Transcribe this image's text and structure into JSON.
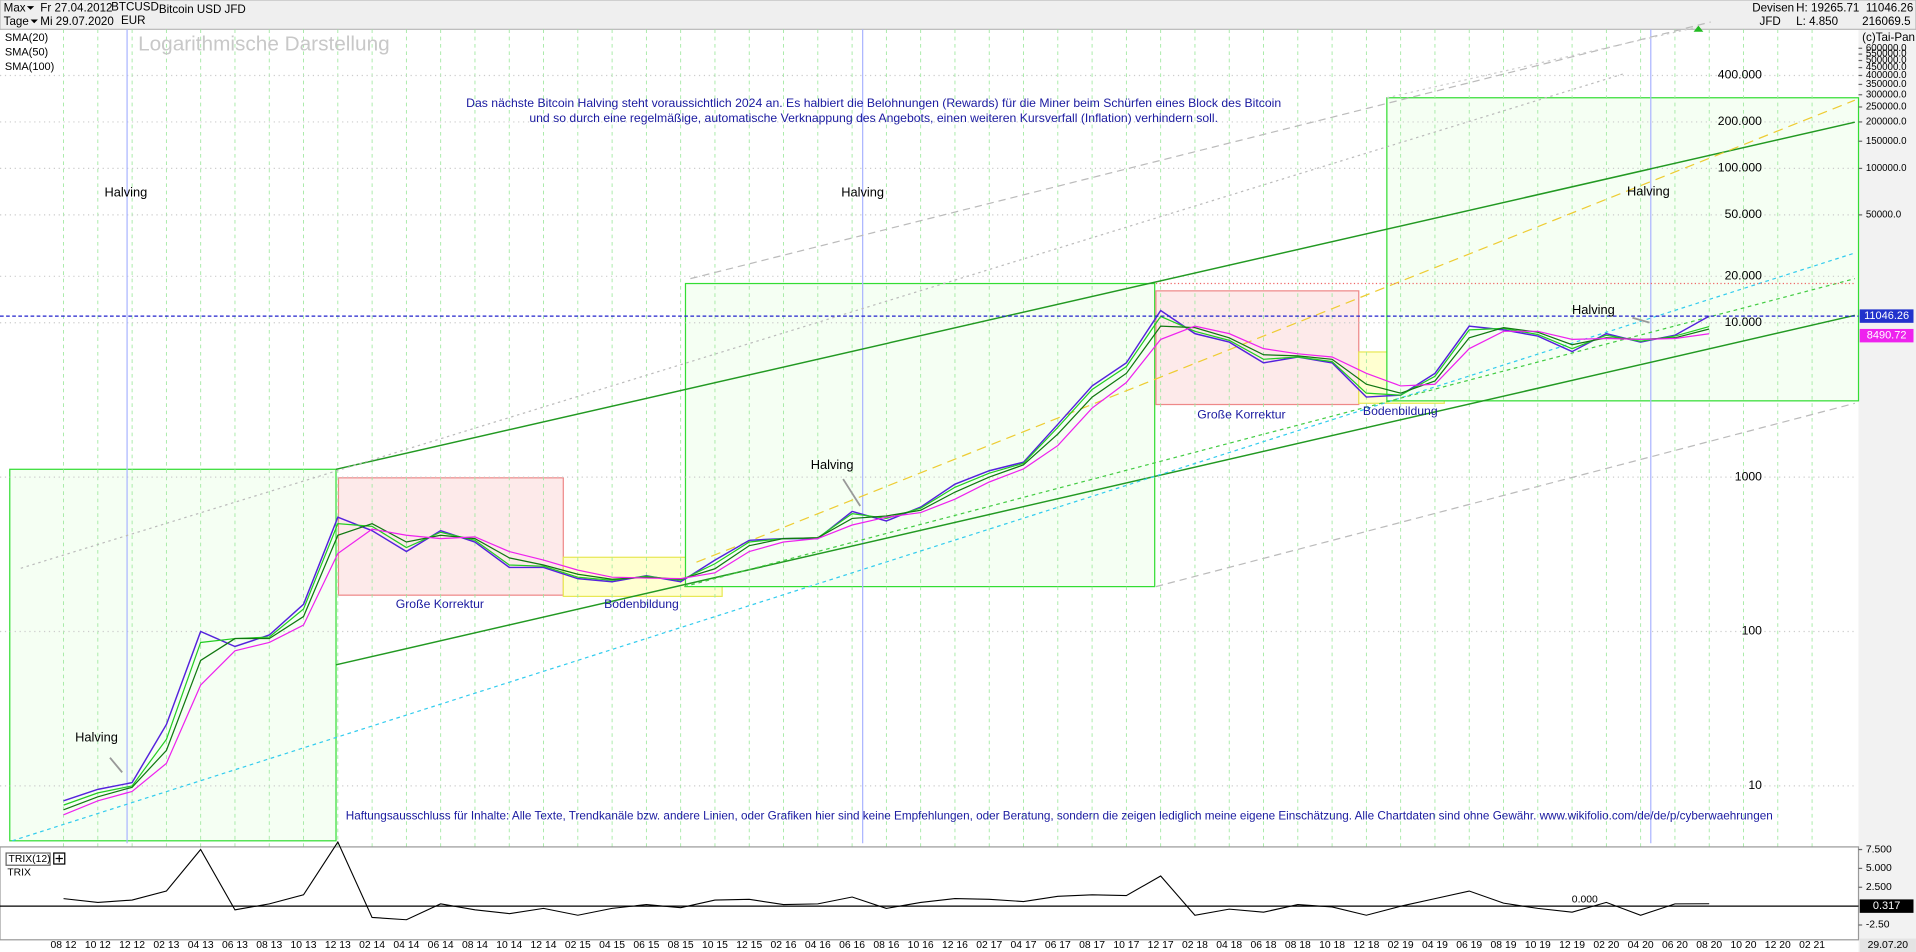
{
  "header": {
    "range": "Max",
    "interval": "Tage",
    "start": "Fr 27.04.2012",
    "end": "Mi 29.07.2020",
    "symbol": "BTCUSD",
    "currency": "EUR",
    "market": "Devisen",
    "broker": "JFD",
    "high": "H: 19265.71",
    "low": "L: 4.850",
    "extra": "216069.5",
    "copyright": "(c)Tai-Pan"
  },
  "chart_data": {
    "type": "line",
    "title": "Bitcoin USD JFD",
    "subtitle": "Logarithmische Darstellung",
    "log_scale": true,
    "grid": true,
    "categories": [
      "08 12",
      "10 12",
      "12 12",
      "02 13",
      "04 13",
      "06 13",
      "08 13",
      "10 13",
      "12 13",
      "02 14",
      "04 14",
      "06 14",
      "08 14",
      "10 14",
      "12 14",
      "02 15",
      "04 15",
      "06 15",
      "08 15",
      "10 15",
      "12 15",
      "02 16",
      "04 16",
      "06 16",
      "08 16",
      "10 16",
      "12 16",
      "02 17",
      "04 17",
      "06 17",
      "08 17",
      "10 17",
      "12 17",
      "02 18",
      "04 18",
      "06 18",
      "08 18",
      "10 18",
      "12 18",
      "02 19",
      "04 19",
      "06 19",
      "08 19",
      "10 19",
      "12 19",
      "02 20",
      "04 20",
      "06 20",
      "08 20",
      "10 20",
      "12 20",
      "02 21"
    ],
    "series": [
      {
        "color": "#5522dd",
        "values": [
          8,
          9.5,
          10.5,
          25,
          100,
          80,
          95,
          150,
          550,
          450,
          330,
          450,
          380,
          260,
          260,
          220,
          210,
          230,
          210,
          290,
          390,
          400,
          400,
          600,
          520,
          640,
          900,
          1100,
          1250,
          2200,
          3900,
          5500,
          12000,
          8500,
          7500,
          5500,
          6000,
          5500,
          3300,
          3400,
          4700,
          9500,
          9000,
          8200,
          6500,
          8500,
          7500,
          8300,
          11046.26,
          null,
          null,
          null
        ]
      },
      {
        "name": "SMA(20)",
        "color": "#22cc22",
        "values": [
          7.5,
          9,
          10,
          20,
          85,
          90,
          92,
          140,
          500,
          480,
          350,
          440,
          390,
          270,
          265,
          225,
          215,
          228,
          215,
          275,
          380,
          400,
          405,
          580,
          540,
          630,
          860,
          1060,
          1230,
          2100,
          3700,
          5200,
          11000,
          8800,
          7700,
          5800,
          6000,
          5600,
          3500,
          3400,
          4500,
          9000,
          9200,
          8400,
          6800,
          8300,
          7600,
          8200,
          9458,
          null,
          null,
          null
        ]
      },
      {
        "name": "SMA(50)",
        "color": "#117711",
        "values": [
          7,
          8.5,
          9.8,
          17,
          65,
          90,
          90,
          125,
          420,
          500,
          380,
          420,
          400,
          300,
          270,
          235,
          218,
          225,
          218,
          255,
          360,
          400,
          405,
          540,
          560,
          610,
          800,
          1000,
          1200,
          1900,
          3300,
          4700,
          9500,
          9300,
          8000,
          6200,
          6100,
          5800,
          4000,
          3500,
          4200,
          8000,
          9300,
          8700,
          7200,
          8000,
          7800,
          8000,
          9120,
          null,
          null,
          null
        ]
      },
      {
        "name": "SMA(100)",
        "color": "#ee22ee",
        "values": [
          6.5,
          8,
          9.2,
          14,
          45,
          75,
          85,
          110,
          320,
          460,
          420,
          400,
          410,
          330,
          290,
          250,
          225,
          222,
          220,
          240,
          330,
          380,
          400,
          490,
          550,
          590,
          720,
          930,
          1130,
          1600,
          2800,
          4100,
          7800,
          9500,
          8500,
          6800,
          6300,
          6000,
          4700,
          3900,
          4000,
          6800,
          8800,
          8800,
          7800,
          7900,
          7800,
          7900,
          8490.72,
          null,
          null,
          null
        ]
      }
    ],
    "ylim": [
      4.25,
      1233000
    ],
    "yticks": [
      {
        "value": 400000,
        "label": "400.000"
      },
      {
        "value": 200000,
        "label": "200.000"
      },
      {
        "value": 100000,
        "label": "100.000"
      },
      {
        "value": 50000,
        "label": "50.000"
      },
      {
        "value": 20000,
        "label": "20.000"
      },
      {
        "value": 10000,
        "label": "10.000"
      },
      1000,
      100,
      10
    ],
    "yticks_right": [
      {
        "value": 600000,
        "label": "600000.0"
      },
      {
        "value": 550000,
        "label": "550000.0"
      },
      {
        "value": 500000,
        "label": "500000.0"
      },
      {
        "value": 450000,
        "label": "450000.0"
      },
      {
        "value": 400000,
        "label": "400000.0"
      },
      {
        "value": 350000,
        "label": "350000.0"
      },
      {
        "value": 300000,
        "label": "300000.0"
      },
      {
        "value": 250000,
        "label": "250000.0"
      },
      {
        "value": 200000,
        "label": "200000.0"
      },
      {
        "value": 150000,
        "label": "150000.0"
      },
      {
        "value": 100000,
        "label": "100000.0"
      },
      {
        "value": 50000,
        "label": "50000.0"
      }
    ],
    "annotations": [
      "Das nächste Bitcoin Halving steht voraussichtlich 2024 an. Es halbiert die Belohnungen (Rewards) für die Miner beim Schürfen eines Block des Bitcoin",
      "und so durch eine regelmäßige, automatische Verknappung des Angebots, einen weiteren Kursverfall (Inflation) verhindern soll.",
      "Halving",
      "Halving",
      "Halving",
      "Halving",
      "Halving",
      "Halving",
      "Große Korrektur",
      "Große Korrektur",
      "Bodenbildung",
      "Bodenbildung",
      "Haftungsausschluss für Inhalte: Alle Texte, Trendkanäle bzw. andere Linien, oder Grafiken hier sind keine Empfehlungen, oder Beratung, sondern die zeigen lediglich meine eigene Einschätzung. Alle Chartdaten sind ohne Gewähr.  www.wikifolio.com/de/de/p/cyberwaehrungen"
    ],
    "last_date": "29.07.20",
    "subplot": {
      "type": "line",
      "title": "TRIX(12)",
      "label": "TRIX",
      "ylim": [
        -4.3,
        7.2
      ],
      "yticks": [
        {
          "value": 7.5,
          "label": "7.500"
        },
        {
          "value": 5,
          "label": "5.000"
        },
        {
          "value": 2.5,
          "label": "2.500"
        },
        {
          "value": -2.5,
          "label": "-2.50"
        }
      ],
      "zero_line": {
        "value": 0,
        "label": "0.000"
      },
      "series": [
        {
          "color": "#000000",
          "values": [
            1,
            0.5,
            0.8,
            2,
            7.5,
            -0.5,
            0.3,
            1.5,
            8.5,
            -1.5,
            -1.8,
            0.3,
            -0.5,
            -1,
            -0.3,
            -1.2,
            -0.3,
            0.2,
            -0.2,
            0.8,
            0.9,
            0.2,
            0.3,
            1.2,
            -0.3,
            0.5,
            1,
            0.9,
            0.6,
            1.3,
            1.5,
            1.4,
            4,
            -1.2,
            -0.4,
            -0.8,
            0.2,
            -0.1,
            -1.2,
            0,
            1,
            2,
            0.4,
            -0.3,
            -0.8,
            0.5,
            -1.2,
            0.3,
            0.317,
            null,
            null,
            null
          ]
        }
      ]
    }
  }
}
